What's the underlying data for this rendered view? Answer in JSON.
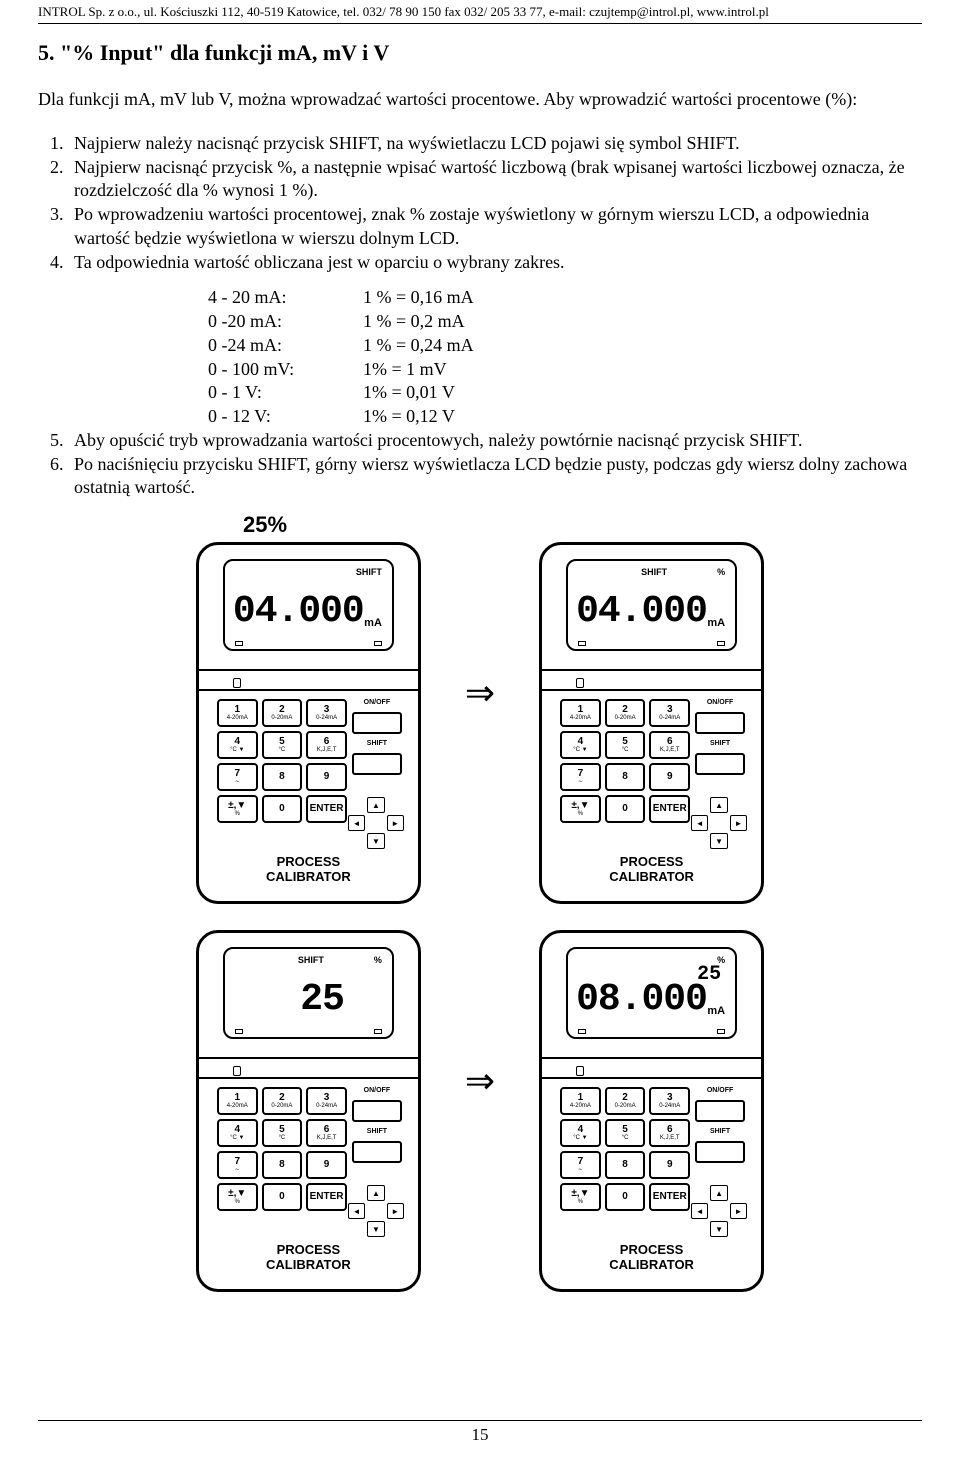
{
  "header": "INTROL Sp. z o.o., ul. Kościuszki 112, 40-519 Katowice, tel. 032/ 78 90 150 fax 032/ 205 33 77, e-mail: czujtemp@introl.pl, www.introl.pl",
  "section_title": "5. \"% Input\" dla funkcji mA, mV i V",
  "intro": "Dla funkcji mA, mV lub V, można wprowadzać wartości procentowe. Aby wprowadzić wartości procentowe (%):",
  "steps": [
    "Najpierw należy nacisnąć przycisk SHIFT, na wyświetlaczu LCD pojawi się symbol SHIFT.",
    "Najpierw nacisnąć przycisk %, a następnie wpisać wartość liczbową (brak wpisanej wartości liczbowej oznacza, że rozdzielczość dla % wynosi 1 %).",
    "Po wprowadzeniu wartości procentowej, znak % zostaje wyświetlony w górnym wierszu LCD, a odpowiednia wartość będzie wyświetlona w wierszu dolnym LCD.",
    "Ta odpowiednia wartość obliczana jest w oparciu o wybrany zakres."
  ],
  "ranges": [
    {
      "left": "4 - 20 mA:",
      "right": "1 % = 0,16 mA"
    },
    {
      "left": "0 -20 mA:",
      "right": "1 % = 0,2 mA"
    },
    {
      "left": "0 -24 mA:",
      "right": "1 % = 0,24 mA"
    },
    {
      "left": "0 - 100 mV:",
      "right": "1% = 1 mV"
    },
    {
      "left": "0 - 1 V:",
      "right": "1% = 0,01 V"
    },
    {
      "left": "0 - 12 V:",
      "right": "1% = 0,12 V"
    }
  ],
  "steps_after": [
    "Aby opuścić tryb wprowadzania wartości procentowych, należy powtórnie nacisnąć przycisk SHIFT.",
    "Po naciśnięciu przycisku SHIFT, górny wiersz wyświetlacza LCD będzie pusty, podczas gdy wiersz dolny zachowa ostatnią wartość."
  ],
  "label_25": "25%",
  "arrow_symbol": "⇒",
  "devices": {
    "row1": {
      "left": {
        "lcd_main": "04.000",
        "lcd_unit": "mA",
        "lcd_top": "SHIFT",
        "keypad": {
          "keys": [
            {
              "n": "1",
              "s": "4-20mA"
            },
            {
              "n": "2",
              "s": "0-20mA"
            },
            {
              "n": "3",
              "s": "0-24mA"
            },
            {
              "n": "4",
              "s": "°C ▼"
            },
            {
              "n": "5",
              "s": "°C"
            },
            {
              "n": "6",
              "s": "K,J,E,T"
            },
            {
              "n": "7",
              "s": "∼"
            },
            {
              "n": "8",
              "s": ""
            },
            {
              "n": "9",
              "s": ""
            },
            {
              "n": "±,▼",
              "s": "%"
            },
            {
              "n": "0",
              "s": ""
            },
            {
              "n": "ENTER",
              "s": ""
            }
          ]
        },
        "right_btns": {
          "on": "ON/OFF",
          "shift": "SHIFT"
        },
        "label": "PROCESS\nCALIBRATOR"
      },
      "right": {
        "lcd_main": "04.000",
        "lcd_unit": "mA",
        "lcd_top_right": "%",
        "lcd_top_left": "SHIFT",
        "keypad": {
          "keys": [
            {
              "n": "1",
              "s": "4-20mA"
            },
            {
              "n": "2",
              "s": "0-20mA"
            },
            {
              "n": "3",
              "s": "0-24mA"
            },
            {
              "n": "4",
              "s": "°C ▼"
            },
            {
              "n": "5",
              "s": "°C"
            },
            {
              "n": "6",
              "s": "K,J,E,T"
            },
            {
              "n": "7",
              "s": "∼"
            },
            {
              "n": "8",
              "s": ""
            },
            {
              "n": "9",
              "s": ""
            },
            {
              "n": "±,▼",
              "s": "%"
            },
            {
              "n": "0",
              "s": ""
            },
            {
              "n": "ENTER",
              "s": ""
            }
          ]
        },
        "right_btns": {
          "on": "ON/OFF",
          "shift": "SHIFT"
        },
        "label": "PROCESS\nCALIBRATOR"
      }
    },
    "row2": {
      "left": {
        "lcd_main": "25",
        "lcd_unit": "",
        "lcd_top_right": "%",
        "lcd_top_left": "SHIFT",
        "keypad": {
          "keys": [
            {
              "n": "1",
              "s": "4-20mA"
            },
            {
              "n": "2",
              "s": "0-20mA"
            },
            {
              "n": "3",
              "s": "0-24mA"
            },
            {
              "n": "4",
              "s": "°C ▼"
            },
            {
              "n": "5",
              "s": "°C"
            },
            {
              "n": "6",
              "s": "K,J,E,T"
            },
            {
              "n": "7",
              "s": "∼"
            },
            {
              "n": "8",
              "s": ""
            },
            {
              "n": "9",
              "s": ""
            },
            {
              "n": "±,▼",
              "s": "%"
            },
            {
              "n": "0",
              "s": ""
            },
            {
              "n": "ENTER",
              "s": ""
            }
          ]
        },
        "right_btns": {
          "on": "ON/OFF",
          "shift": "SHIFT"
        },
        "label": "PROCESS\nCALIBRATOR"
      },
      "right": {
        "lcd_main": "08.000",
        "lcd_small_top": "25",
        "lcd_unit": "mA",
        "lcd_top_right": "%",
        "keypad": {
          "keys": [
            {
              "n": "1",
              "s": "4-20mA"
            },
            {
              "n": "2",
              "s": "0-20mA"
            },
            {
              "n": "3",
              "s": "0-24mA"
            },
            {
              "n": "4",
              "s": "°C ▼"
            },
            {
              "n": "5",
              "s": "°C"
            },
            {
              "n": "6",
              "s": "K,J,E,T"
            },
            {
              "n": "7",
              "s": "∼"
            },
            {
              "n": "8",
              "s": ""
            },
            {
              "n": "9",
              "s": ""
            },
            {
              "n": "±,▼",
              "s": "%"
            },
            {
              "n": "0",
              "s": ""
            },
            {
              "n": "ENTER",
              "s": ""
            }
          ]
        },
        "right_btns": {
          "on": "ON/OFF",
          "shift": "SHIFT"
        },
        "label": "PROCESS\nCALIBRATOR"
      }
    }
  },
  "page_number": "15"
}
